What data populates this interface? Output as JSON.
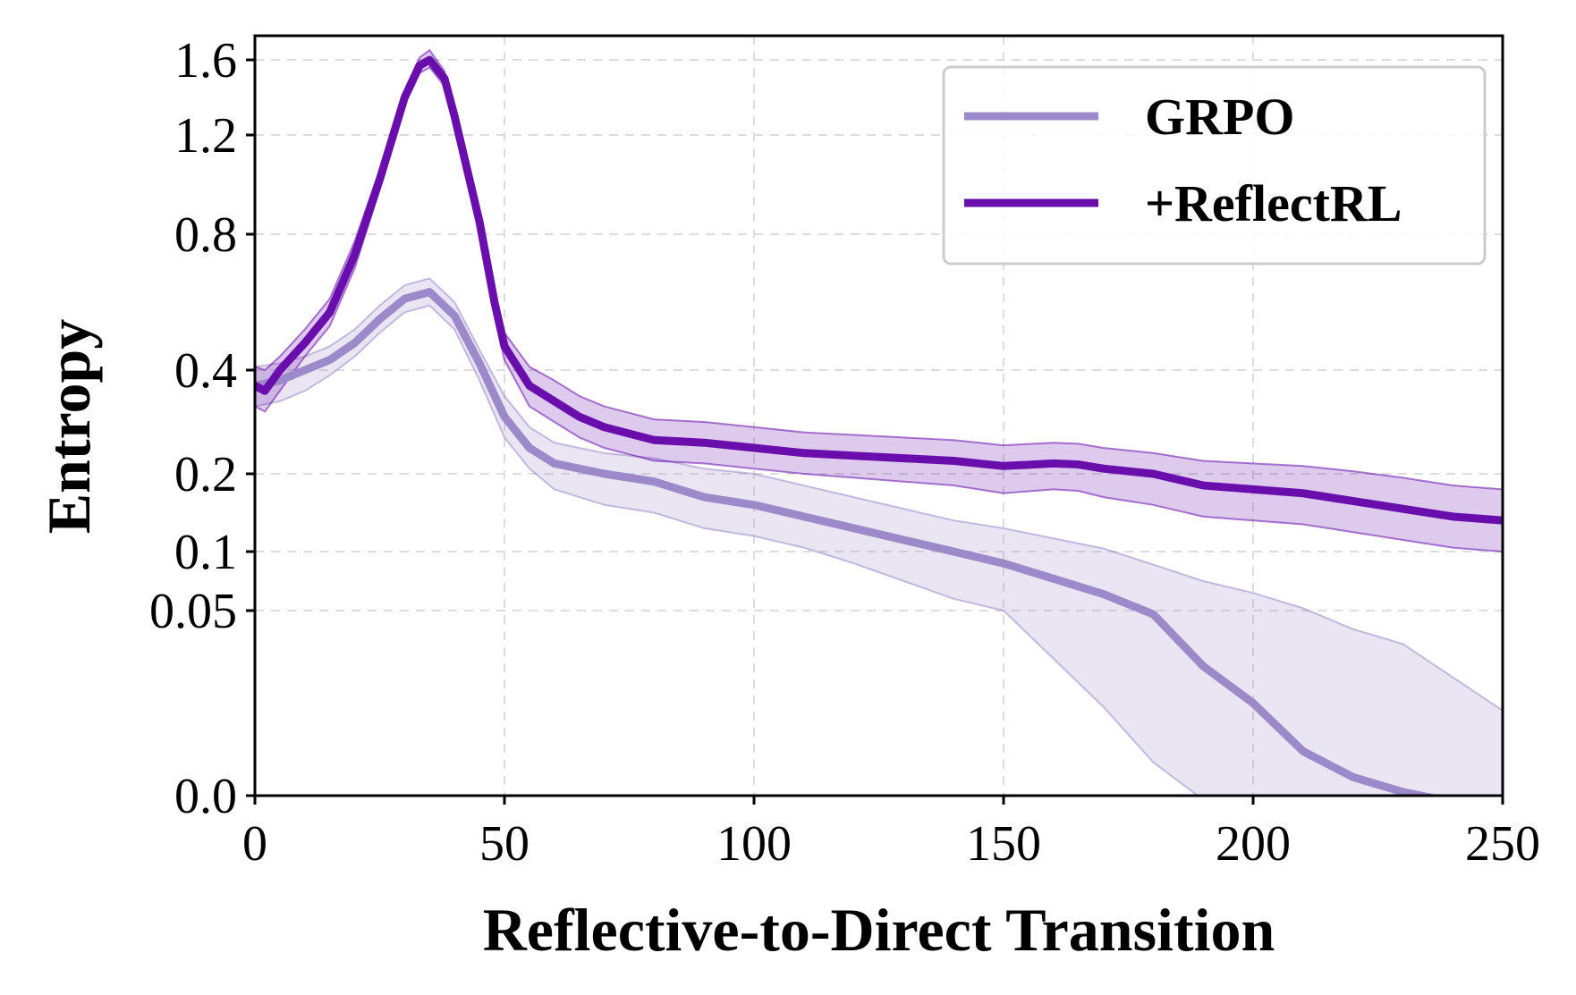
{
  "chart_data": {
    "type": "line",
    "title": "",
    "xlabel": "Reflective-to-Direct Transition",
    "ylabel": "Entropy",
    "xlim": [
      0,
      250
    ],
    "ylim": [
      0.0,
      1.7
    ],
    "y_scale": "nonuniform (compressed below 0.4)",
    "x_ticks": [
      0,
      50,
      100,
      150,
      200,
      250
    ],
    "x_tick_labels": [
      "0",
      "50",
      "100",
      "150",
      "200",
      "250"
    ],
    "y_ticks": [
      0.0,
      0.05,
      0.1,
      0.2,
      0.4,
      0.8,
      1.2,
      1.6
    ],
    "y_tick_labels": [
      "0.0",
      "0.05",
      "0.1",
      "0.2",
      "0.4",
      "0.8",
      "1.2",
      "1.6"
    ],
    "grid": true,
    "legend_position": "top-right",
    "series": [
      {
        "name": "GRPO",
        "color": "#9b89c9",
        "x": [
          0,
          5,
          10,
          15,
          20,
          25,
          30,
          35,
          40,
          45,
          50,
          55,
          60,
          70,
          80,
          90,
          100,
          110,
          120,
          130,
          140,
          150,
          160,
          170,
          180,
          190,
          200,
          210,
          220,
          230,
          240,
          250
        ],
        "y": [
          0.37,
          0.38,
          0.4,
          0.43,
          0.48,
          0.55,
          0.61,
          0.63,
          0.56,
          0.42,
          0.31,
          0.25,
          0.22,
          0.2,
          0.19,
          0.17,
          0.16,
          0.145,
          0.13,
          0.115,
          0.1,
          0.09,
          0.077,
          0.064,
          0.049,
          0.035,
          0.025,
          0.012,
          0.005,
          0.001,
          -0.008,
          -0.017
        ],
        "band": 0.04
      },
      {
        "name": "+ReflectRL",
        "color": "#6a0dad",
        "x": [
          0,
          2,
          5,
          10,
          15,
          20,
          25,
          30,
          33,
          35,
          38,
          40,
          45,
          48,
          50,
          55,
          60,
          65,
          70,
          80,
          90,
          100,
          110,
          120,
          130,
          140,
          150,
          160,
          165,
          170,
          180,
          190,
          200,
          210,
          220,
          230,
          240,
          250
        ],
        "y": [
          0.37,
          0.36,
          0.4,
          0.48,
          0.57,
          0.74,
          1.02,
          1.4,
          1.57,
          1.6,
          1.5,
          1.3,
          0.85,
          0.6,
          0.47,
          0.37,
          0.34,
          0.31,
          0.29,
          0.265,
          0.26,
          0.25,
          0.24,
          0.235,
          0.23,
          0.225,
          0.215,
          0.22,
          0.218,
          0.21,
          0.2,
          0.185,
          0.18,
          0.175,
          0.165,
          0.155,
          0.145,
          0.14
        ],
        "band": 0.04
      }
    ]
  },
  "colors": {
    "grid": "#dddddd",
    "axis": "#000000",
    "legend_border": "#cccccc"
  }
}
